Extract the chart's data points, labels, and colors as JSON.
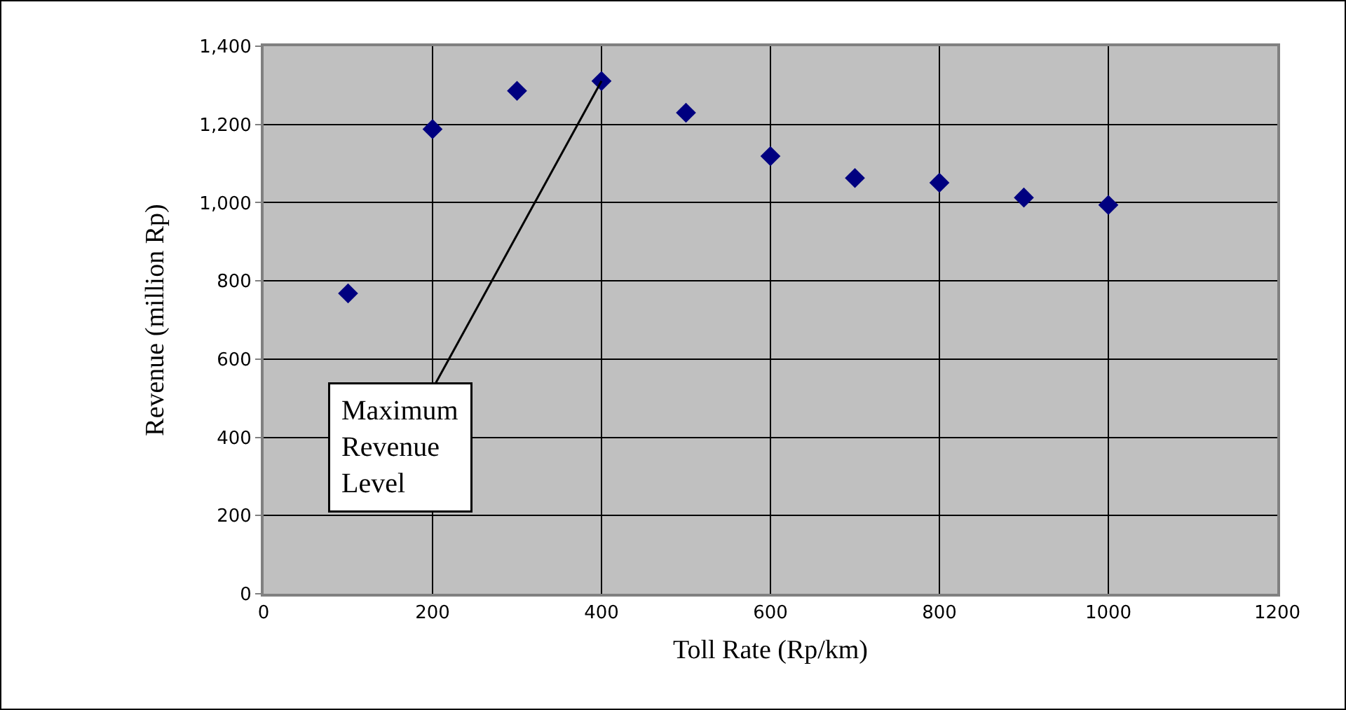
{
  "chart_data": {
    "type": "scatter",
    "xlabel": "Toll Rate (Rp/km)",
    "ylabel": "Revenue (million Rp)",
    "x": [
      100,
      200,
      300,
      400,
      500,
      600,
      700,
      800,
      900,
      1000
    ],
    "values": [
      768,
      1188,
      1286,
      1311,
      1230,
      1119,
      1063,
      1051,
      1013,
      994
    ],
    "color": "#000080",
    "marker": "diamond",
    "grid": true,
    "xlim": [
      0,
      1200
    ],
    "xticks": [
      0,
      200,
      400,
      600,
      800,
      1000,
      1200
    ],
    "ylim": [
      0,
      1400
    ],
    "yticks": [
      0,
      200,
      400,
      600,
      800,
      {
        "value": 1000,
        "label": "1,000"
      },
      {
        "value": 1200,
        "label": "1,200"
      },
      {
        "value": 1400,
        "label": "1,400"
      }
    ],
    "annotations": [
      {
        "text": "Maximum\nRevenue\nLevel",
        "x": 400,
        "y": 1311
      }
    ]
  }
}
